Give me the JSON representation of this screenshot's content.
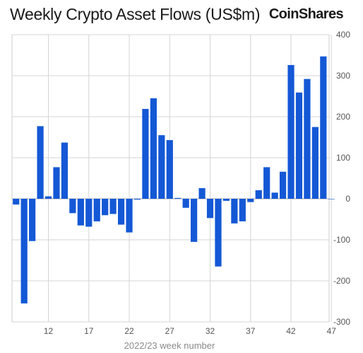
{
  "header": {
    "title": "Weekly Crypto Asset Flows (US$m)",
    "brand": "CoinShares"
  },
  "chart_data": {
    "type": "bar",
    "title": "Weekly Crypto Asset Flows (US$m)",
    "xlabel": "2022/23 week number",
    "ylabel": "",
    "ylim": [
      -300,
      400
    ],
    "yticks": [
      400,
      300,
      200,
      100,
      0,
      -100,
      -200,
      -300
    ],
    "x_tick_labels": [
      "12",
      "17",
      "22",
      "27",
      "32",
      "37",
      "42",
      "47"
    ],
    "grid": true,
    "bar_color": "#1458d6",
    "weeks": [
      8,
      9,
      10,
      11,
      12,
      13,
      14,
      15,
      16,
      17,
      18,
      19,
      20,
      21,
      22,
      23,
      24,
      25,
      26,
      27,
      28,
      29,
      30,
      31,
      32,
      33,
      34,
      35,
      36,
      37,
      38,
      39,
      40,
      41,
      42,
      43,
      44,
      45,
      46,
      47
    ],
    "values": [
      -14,
      -255,
      -103,
      177,
      6,
      77,
      137,
      -35,
      -65,
      -68,
      -55,
      -40,
      -37,
      -63,
      -82,
      -2,
      219,
      245,
      155,
      143,
      2,
      -22,
      -105,
      26,
      -47,
      -165,
      -5,
      -60,
      -55,
      -8,
      21,
      77,
      15,
      66,
      326,
      259,
      292,
      175,
      347,
      0
    ]
  }
}
